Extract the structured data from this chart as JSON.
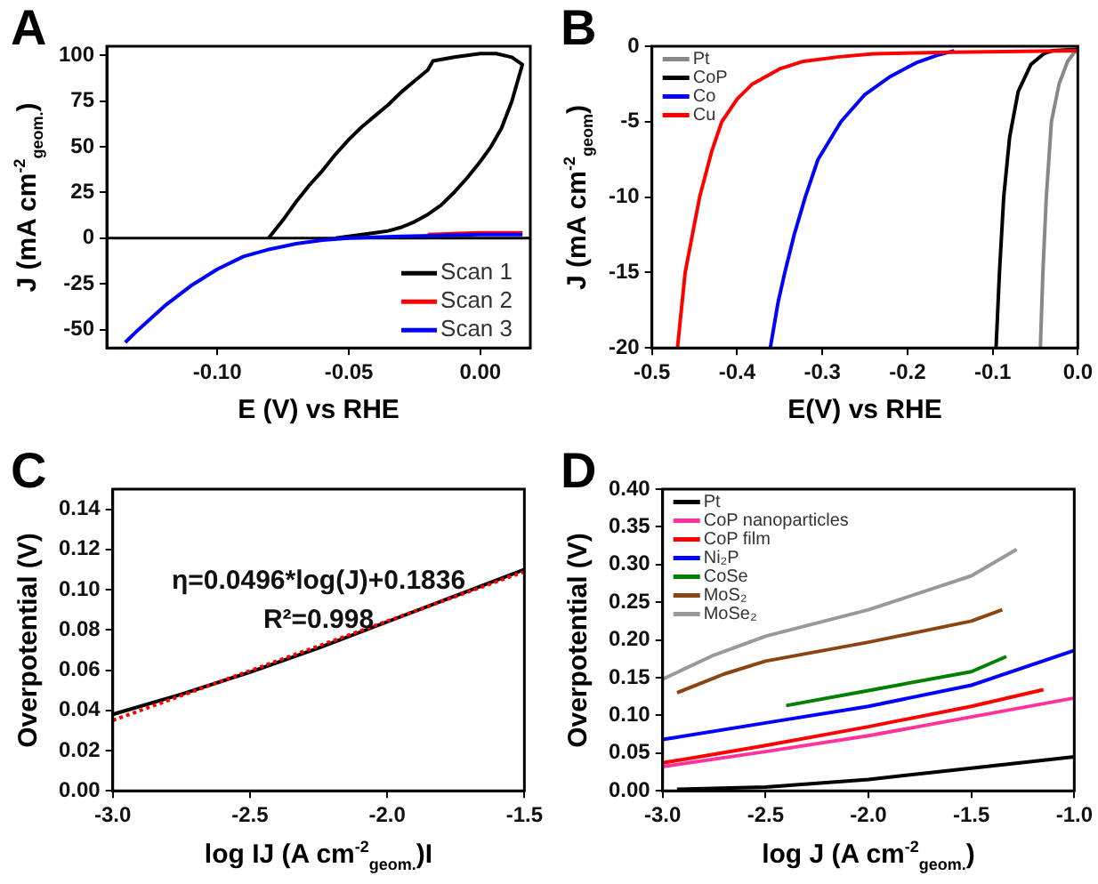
{
  "chart_data": [
    {
      "type": "line",
      "title": "A",
      "xlabel": "E (V) vs RHE",
      "ylabel": "J (mA cm$^{-2}$$_{geom.}$)",
      "xlim": [
        -0.142,
        0.019
      ],
      "xticks": [
        {
          "value": -0.1,
          "label": "-0.10"
        },
        {
          "value": -0.05,
          "label": "-0.05"
        },
        {
          "value": 0,
          "label": "0.00"
        }
      ],
      "ylim": [
        -60,
        105
      ],
      "yticks": [
        -50,
        -25,
        0,
        25,
        50,
        75,
        100
      ],
      "legend": "bottom right",
      "ref_lines": [
        {
          "axis": "y",
          "value": 0,
          "color": "#000000"
        }
      ],
      "series": [
        {
          "name": "Scan 1",
          "color": "#000000",
          "x": [
            -0.0805,
            -0.075,
            -0.07,
            -0.065,
            -0.06,
            -0.055,
            -0.05,
            -0.045,
            -0.04,
            -0.035,
            -0.03,
            -0.025,
            -0.02,
            -0.018,
            -0.01,
            0,
            0.006,
            0.012,
            0.016,
            0.012,
            0.008,
            0.004,
            0,
            -0.005,
            -0.01,
            -0.015,
            -0.02,
            -0.025,
            -0.03,
            -0.035,
            -0.04,
            -0.045,
            -0.05,
            -0.055
          ],
          "values": [
            0,
            10,
            20,
            29,
            37,
            46,
            54,
            61,
            67,
            73,
            80,
            86,
            92,
            97,
            99,
            101,
            101,
            99,
            95,
            75,
            60,
            50,
            42,
            33,
            25,
            18,
            13,
            9,
            6,
            4,
            3,
            2,
            1,
            0
          ]
        },
        {
          "name": "Scan 2",
          "color": "#ff0000",
          "x": [
            -0.02,
            0,
            0.016
          ],
          "values": [
            2,
            3,
            3
          ]
        },
        {
          "name": "Scan 3",
          "color": "#0000ff",
          "x": [
            -0.135,
            -0.13,
            -0.12,
            -0.11,
            -0.1,
            -0.09,
            -0.08,
            -0.07,
            -0.06,
            -0.05,
            -0.03,
            0,
            0.016
          ],
          "values": [
            -57,
            -50,
            -37,
            -26,
            -17,
            -10,
            -6,
            -3,
            -1,
            0,
            1,
            2,
            2
          ]
        }
      ]
    },
    {
      "type": "line",
      "title": "B",
      "xlabel": "E(V) vs RHE",
      "ylabel": "J (mA cm$^{-2}$$_{geom}$)",
      "xlim": [
        -0.5,
        0
      ],
      "xticks": [
        {
          "value": -0.5,
          "label": "-0.5"
        },
        {
          "value": -0.4,
          "label": "-0.4"
        },
        {
          "value": -0.3,
          "label": "-0.3"
        },
        {
          "value": -0.2,
          "label": "-0.2"
        },
        {
          "value": -0.1,
          "label": "-0.1"
        },
        {
          "value": 0,
          "label": "0.0"
        }
      ],
      "ylim": [
        -20,
        0
      ],
      "yticks": [
        -20,
        -15,
        -10,
        -5,
        0
      ],
      "legend": "top left",
      "series": [
        {
          "name": "Pt",
          "color": "#888888",
          "x": [
            -0.044,
            -0.041,
            -0.037,
            -0.031,
            -0.022,
            -0.012,
            -0.004,
            0
          ],
          "values": [
            -20,
            -15,
            -10,
            -5,
            -2.5,
            -1,
            -0.4,
            -0.2
          ]
        },
        {
          "name": "CoP",
          "color": "#000000",
          "x": [
            -0.096,
            -0.092,
            -0.087,
            -0.08,
            -0.07,
            -0.055,
            -0.04,
            -0.03,
            0
          ],
          "values": [
            -20,
            -15,
            -10,
            -6,
            -3,
            -1.2,
            -0.5,
            -0.3,
            -0.2
          ]
        },
        {
          "name": "Co",
          "color": "#0000ff",
          "x": [
            -0.361,
            -0.352,
            -0.344,
            -0.333,
            -0.32,
            -0.305,
            -0.278,
            -0.25,
            -0.22,
            -0.19,
            -0.165,
            -0.145
          ],
          "values": [
            -20,
            -17,
            -15,
            -12.5,
            -10,
            -7.5,
            -5,
            -3.2,
            -2,
            -1.1,
            -0.6,
            -0.3
          ]
        },
        {
          "name": "Cu",
          "color": "#ff0000",
          "x": [
            -0.47,
            -0.461,
            -0.444,
            -0.43,
            -0.418,
            -0.4,
            -0.382,
            -0.35,
            -0.322,
            -0.28,
            -0.24,
            -0.15,
            0
          ],
          "values": [
            -20,
            -15,
            -10,
            -7,
            -5,
            -3.5,
            -2.5,
            -1.5,
            -1,
            -0.7,
            -0.5,
            -0.4,
            -0.3
          ]
        }
      ]
    },
    {
      "type": "line",
      "title": "C",
      "xlabel": "log IJ (A cm$^{-2}$$_{geom.}$)I",
      "ylabel": "Overpotential (V)",
      "xlim": [
        -3,
        -1.5
      ],
      "xticks": [
        {
          "value": -3,
          "label": "-3.0"
        },
        {
          "value": -2.5,
          "label": "-2.5"
        },
        {
          "value": -2,
          "label": "-2.0"
        },
        {
          "value": -1.5,
          "label": "-1.5"
        }
      ],
      "ylim": [
        0,
        0.15
      ],
      "yticks": [
        {
          "value": 0,
          "label": "0.00"
        },
        {
          "value": 0.02,
          "label": "0.02"
        },
        {
          "value": 0.04,
          "label": "0.04"
        },
        {
          "value": 0.06,
          "label": "0.06"
        },
        {
          "value": 0.08,
          "label": "0.08"
        },
        {
          "value": 0.1,
          "label": "0.10"
        },
        {
          "value": 0.12,
          "label": "0.12"
        },
        {
          "value": 0.14,
          "label": "0.14"
        }
      ],
      "annotations": [
        "η=0.0496*log(J)+0.1836",
        "R²=0.998"
      ],
      "series": [
        {
          "color": "#000000",
          "x": [
            -3,
            -2.75,
            -2.5,
            -2.25,
            -2,
            -1.75,
            -1.5
          ],
          "values": [
            0.038,
            0.048,
            0.059,
            0.071,
            0.084,
            0.097,
            0.11
          ]
        },
        {
          "type": "line",
          "color": "#ff0000",
          "line_style": "dotted",
          "x": [
            -3,
            -1.5
          ],
          "values": [
            0.035,
            0.109
          ]
        }
      ]
    },
    {
      "type": "line",
      "title": "D",
      "xlabel": "log J (A cm$^{-2}$$_{geom.}$)",
      "ylabel": "Overpotential (V)",
      "xlim": [
        -3,
        -1
      ],
      "xticks": [
        {
          "value": -3,
          "label": "-3.0"
        },
        {
          "value": -2.5,
          "label": "-2.5"
        },
        {
          "value": -2,
          "label": "-2.0"
        },
        {
          "value": -1.5,
          "label": "-1.5"
        },
        {
          "value": -1,
          "label": "-1.0"
        }
      ],
      "ylim": [
        0,
        0.4
      ],
      "yticks": [
        {
          "value": 0,
          "label": "0.00"
        },
        {
          "value": 0.05,
          "label": "0.05"
        },
        {
          "value": 0.1,
          "label": "0.10"
        },
        {
          "value": 0.15,
          "label": "0.15"
        },
        {
          "value": 0.2,
          "label": "0.20"
        },
        {
          "value": 0.25,
          "label": "0.25"
        },
        {
          "value": 0.3,
          "label": "0.30"
        },
        {
          "value": 0.35,
          "label": "0.35"
        },
        {
          "value": 0.4,
          "label": "0.40"
        }
      ],
      "legend": "top left",
      "series": [
        {
          "name": "Pt",
          "color": "#000000",
          "x": [
            -2.93,
            -2.5,
            -2,
            -1.5,
            -1
          ],
          "values": [
            0.002,
            0.005,
            0.015,
            0.03,
            0.045
          ]
        },
        {
          "name": "CoP nanoparticles",
          "color": "#ff3399",
          "x": [
            -3,
            -2.5,
            -2,
            -1.5,
            -1
          ],
          "values": [
            0.032,
            0.052,
            0.073,
            0.098,
            0.123
          ]
        },
        {
          "name": "CoP film",
          "color": "#ff0000",
          "x": [
            -3,
            -2.5,
            -2,
            -1.5,
            -1.15
          ],
          "values": [
            0.037,
            0.06,
            0.085,
            0.112,
            0.134
          ]
        },
        {
          "name": "Ni₂P",
          "color": "#0000ff",
          "x": [
            -3,
            -2.5,
            -2,
            -1.5,
            -1
          ],
          "values": [
            0.068,
            0.09,
            0.112,
            0.14,
            0.186
          ]
        },
        {
          "name": "CoSe",
          "color": "#008000",
          "x": [
            -2.4,
            -2,
            -1.5,
            -1.33
          ],
          "values": [
            0.113,
            0.133,
            0.158,
            0.178
          ]
        },
        {
          "name": "MoS₂",
          "color": "#8b4513",
          "x": [
            -2.93,
            -2.7,
            -2.5,
            -2,
            -1.5,
            -1.35
          ],
          "values": [
            0.13,
            0.155,
            0.172,
            0.197,
            0.225,
            0.24
          ]
        },
        {
          "name": "MoSe₂",
          "color": "#999999",
          "x": [
            -3,
            -2.75,
            -2.5,
            -2,
            -1.5,
            -1.28
          ],
          "values": [
            0.148,
            0.18,
            0.205,
            0.24,
            0.285,
            0.32
          ]
        }
      ]
    }
  ]
}
